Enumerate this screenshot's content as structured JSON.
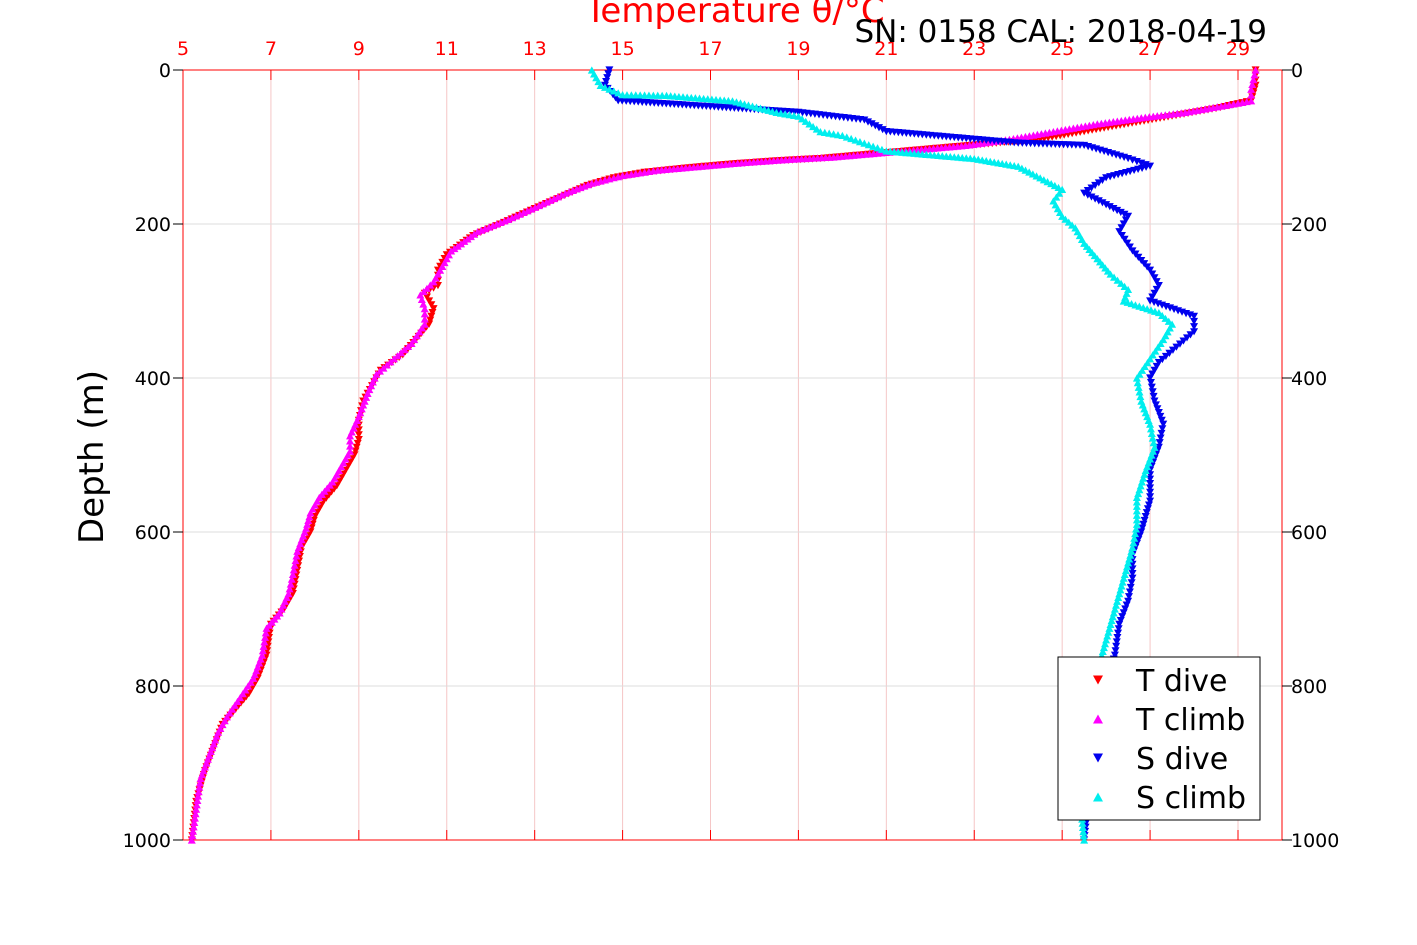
{
  "chart_data": {
    "type": "scatter",
    "title": "Temperature θ/°C",
    "subtitle": "SN: 0158  CAL: 2018-04-19",
    "ylabel": "Depth (m)",
    "y_reversed": true,
    "ylim": [
      0,
      1000
    ],
    "yticks": [
      0,
      200,
      400,
      600,
      800,
      1000
    ],
    "xlim_temperature": [
      5,
      30
    ],
    "xticks_temperature": [
      5,
      7,
      9,
      11,
      13,
      15,
      17,
      19,
      21,
      23,
      25,
      27,
      29
    ],
    "grid": true,
    "legend_position": "bottom-right",
    "colors": {
      "t_dive": "#ff0000",
      "t_climb": "#ff00ff",
      "s_dive": "#0000ee",
      "s_climb": "#00eeee",
      "top_axis": "#ff0000",
      "grid": "#dddddd",
      "red_grid": "#f5c6c6"
    },
    "series": [
      {
        "name": "T dive",
        "marker": "triangle-down",
        "axis": "temperature",
        "points": [
          [
            29.4,
            0
          ],
          [
            29.4,
            20
          ],
          [
            29.3,
            40
          ],
          [
            28.5,
            50
          ],
          [
            27.5,
            60
          ],
          [
            26.5,
            70
          ],
          [
            25.5,
            80
          ],
          [
            24.5,
            90
          ],
          [
            23.5,
            95
          ],
          [
            22.5,
            100
          ],
          [
            21.5,
            105
          ],
          [
            20.5,
            110
          ],
          [
            19.5,
            115
          ],
          [
            18.5,
            118
          ],
          [
            17.5,
            122
          ],
          [
            16.5,
            127
          ],
          [
            15.5,
            133
          ],
          [
            14.8,
            140
          ],
          [
            14.2,
            150
          ],
          [
            13.6,
            165
          ],
          [
            13.0,
            180
          ],
          [
            12.3,
            198
          ],
          [
            11.6,
            215
          ],
          [
            11.0,
            240
          ],
          [
            10.8,
            260
          ],
          [
            10.8,
            280
          ],
          [
            10.5,
            290
          ],
          [
            10.7,
            310
          ],
          [
            10.6,
            330
          ],
          [
            10.3,
            350
          ],
          [
            10.0,
            370
          ],
          [
            9.5,
            390
          ],
          [
            9.3,
            410
          ],
          [
            9.1,
            430
          ],
          [
            9.0,
            455
          ],
          [
            9.0,
            480
          ],
          [
            8.9,
            500
          ],
          [
            8.7,
            520
          ],
          [
            8.5,
            540
          ],
          [
            8.2,
            560
          ],
          [
            8.0,
            580
          ],
          [
            7.9,
            600
          ],
          [
            7.7,
            620
          ],
          [
            7.6,
            650
          ],
          [
            7.5,
            680
          ],
          [
            7.3,
            700
          ],
          [
            7.0,
            720
          ],
          [
            6.9,
            760
          ],
          [
            6.7,
            790
          ],
          [
            6.5,
            810
          ],
          [
            6.2,
            830
          ],
          [
            5.9,
            850
          ],
          [
            5.7,
            880
          ],
          [
            5.5,
            910
          ],
          [
            5.3,
            950
          ],
          [
            5.2,
            1000
          ]
        ]
      },
      {
        "name": "T climb",
        "marker": "triangle-up",
        "axis": "temperature",
        "points": [
          [
            29.4,
            0
          ],
          [
            29.3,
            25
          ],
          [
            29.3,
            40
          ],
          [
            28.8,
            45
          ],
          [
            27.8,
            55
          ],
          [
            26.8,
            62
          ],
          [
            25.8,
            70
          ],
          [
            24.8,
            80
          ],
          [
            23.8,
            90
          ],
          [
            22.8,
            98
          ],
          [
            21.8,
            103
          ],
          [
            20.8,
            108
          ],
          [
            19.8,
            113
          ],
          [
            18.8,
            116
          ],
          [
            17.8,
            120
          ],
          [
            16.8,
            125
          ],
          [
            15.8,
            130
          ],
          [
            15.0,
            137
          ],
          [
            14.3,
            147
          ],
          [
            13.7,
            160
          ],
          [
            13.1,
            176
          ],
          [
            12.4,
            194
          ],
          [
            11.7,
            210
          ],
          [
            11.1,
            235
          ],
          [
            10.9,
            255
          ],
          [
            10.7,
            275
          ],
          [
            10.4,
            292
          ],
          [
            10.5,
            310
          ],
          [
            10.5,
            330
          ],
          [
            10.2,
            355
          ],
          [
            9.8,
            375
          ],
          [
            9.4,
            395
          ],
          [
            9.2,
            420
          ],
          [
            9.0,
            450
          ],
          [
            8.8,
            475
          ],
          [
            8.8,
            495
          ],
          [
            8.6,
            515
          ],
          [
            8.4,
            535
          ],
          [
            8.1,
            555
          ],
          [
            7.9,
            575
          ],
          [
            7.8,
            595
          ],
          [
            7.6,
            625
          ],
          [
            7.5,
            655
          ],
          [
            7.4,
            680
          ],
          [
            7.2,
            705
          ],
          [
            6.9,
            725
          ],
          [
            6.8,
            760
          ],
          [
            6.6,
            790
          ],
          [
            6.3,
            815
          ],
          [
            6.0,
            840
          ],
          [
            5.8,
            860
          ],
          [
            5.6,
            890
          ],
          [
            5.4,
            920
          ],
          [
            5.3,
            960
          ],
          [
            5.2,
            1000
          ]
        ]
      },
      {
        "name": "S dive",
        "marker": "triangle-down",
        "axis": "salinity",
        "points": [
          [
            14.7,
            0
          ],
          [
            14.6,
            20
          ],
          [
            14.9,
            40
          ],
          [
            19.0,
            55
          ],
          [
            20.5,
            65
          ],
          [
            21.0,
            80
          ],
          [
            22.0,
            85
          ],
          [
            23.0,
            90
          ],
          [
            24.0,
            95
          ],
          [
            25.5,
            98
          ],
          [
            26.5,
            115
          ],
          [
            27.0,
            125
          ],
          [
            26.0,
            140
          ],
          [
            25.5,
            160
          ],
          [
            26.0,
            175
          ],
          [
            26.5,
            190
          ],
          [
            26.3,
            210
          ],
          [
            26.6,
            235
          ],
          [
            27.0,
            260
          ],
          [
            27.2,
            280
          ],
          [
            27.0,
            300
          ],
          [
            28.0,
            320
          ],
          [
            28.0,
            340
          ],
          [
            27.6,
            360
          ],
          [
            27.2,
            380
          ],
          [
            27.0,
            400
          ],
          [
            27.1,
            430
          ],
          [
            27.3,
            460
          ],
          [
            27.2,
            490
          ],
          [
            27.0,
            520
          ],
          [
            27.0,
            560
          ],
          [
            26.8,
            600
          ],
          [
            26.6,
            630
          ],
          [
            26.6,
            660
          ],
          [
            26.5,
            690
          ],
          [
            26.3,
            720
          ],
          [
            26.2,
            760
          ],
          [
            26.0,
            800
          ],
          [
            25.9,
            850
          ],
          [
            25.7,
            900
          ],
          [
            25.6,
            950
          ],
          [
            25.5,
            1000
          ]
        ]
      },
      {
        "name": "S climb",
        "marker": "triangle-up",
        "axis": "salinity",
        "points": [
          [
            14.3,
            0
          ],
          [
            14.5,
            20
          ],
          [
            15.0,
            32
          ],
          [
            16.0,
            33
          ],
          [
            17.5,
            40
          ],
          [
            18.5,
            55
          ],
          [
            19.0,
            60
          ],
          [
            19.5,
            80
          ],
          [
            20.0,
            85
          ],
          [
            20.5,
            95
          ],
          [
            21.0,
            105
          ],
          [
            22.0,
            110
          ],
          [
            23.0,
            115
          ],
          [
            24.0,
            125
          ],
          [
            24.5,
            140
          ],
          [
            25.0,
            155
          ],
          [
            24.8,
            170
          ],
          [
            25.0,
            190
          ],
          [
            25.3,
            205
          ],
          [
            25.5,
            225
          ],
          [
            25.8,
            245
          ],
          [
            26.1,
            265
          ],
          [
            26.5,
            285
          ],
          [
            26.4,
            300
          ],
          [
            27.2,
            315
          ],
          [
            27.5,
            330
          ],
          [
            27.3,
            350
          ],
          [
            27.0,
            375
          ],
          [
            26.7,
            400
          ],
          [
            26.8,
            430
          ],
          [
            27.0,
            460
          ],
          [
            27.1,
            490
          ],
          [
            26.9,
            520
          ],
          [
            26.7,
            555
          ],
          [
            26.7,
            590
          ],
          [
            26.6,
            620
          ],
          [
            26.4,
            660
          ],
          [
            26.2,
            700
          ],
          [
            26.0,
            740
          ],
          [
            25.8,
            780
          ],
          [
            25.6,
            830
          ],
          [
            25.5,
            880
          ],
          [
            25.4,
            940
          ],
          [
            25.5,
            1000
          ]
        ]
      }
    ]
  }
}
